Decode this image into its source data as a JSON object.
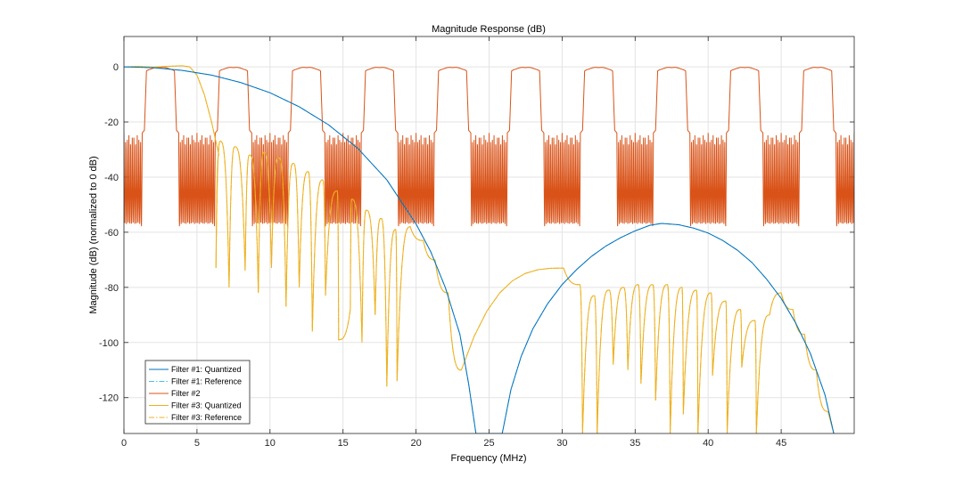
{
  "chart_data": {
    "type": "line",
    "title": "Magnitude Response (dB)",
    "xlabel": "Frequency (MHz)",
    "ylabel": "Magnitude (dB) (normalized to 0 dB)",
    "xlim": [
      0,
      50
    ],
    "ylim": [
      -133,
      11
    ],
    "xticks": [
      0,
      5,
      10,
      15,
      20,
      25,
      30,
      35,
      40,
      45
    ],
    "yticks": [
      0,
      -20,
      -40,
      -60,
      -80,
      -100,
      -120
    ],
    "grid": true,
    "legend_position": "bottom-left",
    "series": [
      {
        "name": "Filter #1: Quantized",
        "color": "#0072BD",
        "style": "solid",
        "x": [
          0,
          2,
          4,
          6,
          8,
          10,
          12,
          14,
          16,
          18,
          20,
          21,
          22,
          23,
          23.6,
          24.1,
          25.9,
          26.5,
          27.2,
          28,
          29,
          30,
          31,
          32,
          33,
          34,
          35,
          36,
          36.8,
          38,
          39,
          40,
          41,
          42,
          43,
          44,
          45,
          46,
          47,
          48,
          48.6
        ],
        "y": [
          0,
          -0.3,
          -1.3,
          -3,
          -5.7,
          -9.4,
          -14.5,
          -21,
          -29.5,
          -41,
          -57,
          -67,
          -80,
          -97,
          -115,
          -133,
          -133,
          -117,
          -105,
          -95,
          -86,
          -79,
          -73.5,
          -68.8,
          -65,
          -62,
          -59.5,
          -57.5,
          -56.8,
          -57.3,
          -58.5,
          -60.3,
          -63,
          -66.5,
          -71,
          -77,
          -84,
          -93,
          -104,
          -119,
          -133
        ]
      },
      {
        "name": "Filter #1: Reference",
        "color": "#4DBEEE",
        "style": "dashdot",
        "x": [
          0,
          2,
          4,
          6,
          8,
          10,
          12,
          14,
          16,
          18,
          20,
          21,
          22,
          23,
          23.6,
          24.1,
          25.9,
          26.5,
          27.2,
          28,
          29,
          30,
          31,
          32,
          33,
          34,
          35,
          36,
          36.8,
          38,
          39,
          40,
          41,
          42,
          43,
          44,
          45,
          46,
          47,
          48,
          48.6
        ],
        "y": [
          0,
          -0.3,
          -1.3,
          -3,
          -5.7,
          -9.4,
          -14.5,
          -21,
          -29.5,
          -41,
          -57,
          -67,
          -80,
          -97,
          -115,
          -133,
          -133,
          -117,
          -105,
          -95,
          -86,
          -79,
          -73.5,
          -68.8,
          -65,
          -62,
          -59.5,
          -57.5,
          -56.8,
          -57.3,
          -58.5,
          -60.3,
          -63,
          -66.5,
          -71,
          -77,
          -84,
          -93,
          -104,
          -119,
          -133
        ]
      },
      {
        "name": "Filter #2",
        "color": "#D95319",
        "style": "solid",
        "period": 5,
        "passband_center": 2.5,
        "passband_halfwidth": 1.1,
        "stopband_levels": [
          -24,
          -57
        ],
        "ripple_count": 11
      },
      {
        "name": "Filter #3: Quantized",
        "color": "#EDB120",
        "style": "solid",
        "passband": {
          "x": [
            0,
            1,
            2,
            3,
            4,
            4.5,
            5,
            5.5,
            6,
            6.5
          ],
          "y": [
            0,
            0.2,
            -0.1,
            0.2,
            0.4,
            0,
            -3,
            -10,
            -20,
            -32
          ]
        },
        "lobe_peaks": {
          "x": [
            6.6,
            7.6,
            8.6,
            9.6,
            10.6,
            11.6,
            12.6,
            13.6,
            14.6,
            15.6,
            16.6,
            17.6,
            18.6,
            19.6,
            20.5,
            21.3,
            22.2,
            23.1,
            30.1,
            31.2,
            32.2,
            33.2,
            34.2,
            35.2,
            36.2,
            37.2,
            38.2,
            39.2,
            40.2,
            41.2,
            42.2,
            43.2,
            44.2,
            45,
            45.8,
            46.6,
            47.4,
            48.2
          ],
          "y": [
            -27,
            -29,
            -32,
            -31,
            -33,
            -35,
            -38,
            -41,
            -45,
            -48,
            -52,
            -55,
            -59,
            -58,
            -63,
            -70,
            -82,
            -110,
            -73,
            -79,
            -83,
            -81,
            -80,
            -79,
            -79,
            -79,
            -80,
            -81,
            -82,
            -85,
            -88,
            -92,
            -90,
            -82,
            -88,
            -97,
            -110,
            -125
          ]
        },
        "null_x": [
          6.3,
          7.2,
          8.3,
          9.2,
          10.1,
          11.1,
          12.0,
          12.9,
          13.8,
          14.7,
          15.5,
          16.3,
          17.2,
          18.0,
          18.7,
          31.4,
          32.4,
          33.5,
          34.5,
          35.4,
          36.4,
          37.4,
          38.3,
          39.3,
          40.3,
          41.3,
          42.3,
          43.3
        ],
        "null_y": [
          -73,
          -80,
          -74,
          -82,
          -73,
          -87,
          -80,
          -96,
          -83,
          -99,
          -88,
          -100,
          -90,
          -116,
          -114,
          -133,
          -133,
          -108,
          -110,
          -115,
          -121,
          -133,
          -126,
          -133,
          -112,
          -133,
          -109,
          -133
        ]
      },
      {
        "name": "Filter #3: Reference",
        "color": "#EDB120",
        "style": "dashdot",
        "same_as": "Filter #3: Quantized"
      }
    ]
  }
}
